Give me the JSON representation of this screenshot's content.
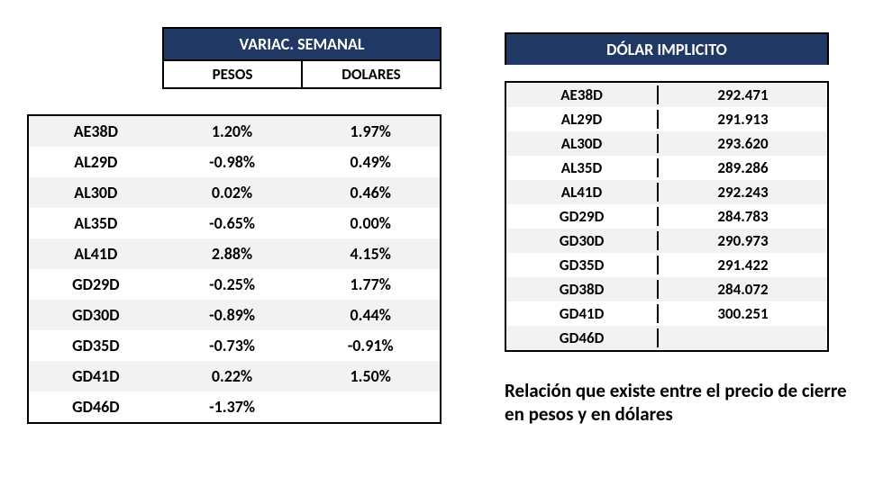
{
  "colors": {
    "header_bg": "#203864",
    "header_text": "#ffffff",
    "border": "#000000",
    "row_even": "#f2f2f2",
    "row_odd": "#ffffff",
    "text": "#000000",
    "page_bg": "#ffffff"
  },
  "typography": {
    "font_family": "Calibri, Arial, sans-serif",
    "title_fontsize_pt": 14,
    "cell_fontsize_pt": 13,
    "caption_fontsize_pt": 16,
    "weight": "bold"
  },
  "left": {
    "title": "VARIAC. SEMANAL",
    "subheaders": [
      "PESOS",
      "DOLARES"
    ],
    "columns": [
      "ticker",
      "pesos",
      "dolares"
    ],
    "rows": [
      {
        "ticker": "AE38D",
        "pesos": "1.20%",
        "dolares": "1.97%"
      },
      {
        "ticker": "AL29D",
        "pesos": "-0.98%",
        "dolares": "0.49%"
      },
      {
        "ticker": "AL30D",
        "pesos": "0.02%",
        "dolares": "0.46%"
      },
      {
        "ticker": "AL35D",
        "pesos": "-0.65%",
        "dolares": "0.00%"
      },
      {
        "ticker": "AL41D",
        "pesos": "2.88%",
        "dolares": "4.15%"
      },
      {
        "ticker": "GD29D",
        "pesos": "-0.25%",
        "dolares": "1.77%"
      },
      {
        "ticker": "GD30D",
        "pesos": "-0.89%",
        "dolares": "0.44%"
      },
      {
        "ticker": "GD35D",
        "pesos": "-0.73%",
        "dolares": "-0.91%"
      },
      {
        "ticker": "GD41D",
        "pesos": "0.22%",
        "dolares": "1.50%"
      },
      {
        "ticker": "GD46D",
        "pesos": "-1.37%",
        "dolares": ""
      }
    ]
  },
  "right": {
    "title": "DÓLAR IMPLICITO",
    "columns": [
      "ticker",
      "value"
    ],
    "rows": [
      {
        "ticker": "AE38D",
        "value": "292.471"
      },
      {
        "ticker": "AL29D",
        "value": "291.913"
      },
      {
        "ticker": "AL30D",
        "value": "293.620"
      },
      {
        "ticker": "AL35D",
        "value": "289.286"
      },
      {
        "ticker": "AL41D",
        "value": "292.243"
      },
      {
        "ticker": "GD29D",
        "value": "284.783"
      },
      {
        "ticker": "GD30D",
        "value": "290.973"
      },
      {
        "ticker": "GD35D",
        "value": "291.422"
      },
      {
        "ticker": "GD38D",
        "value": "284.072"
      },
      {
        "ticker": "GD41D",
        "value": "300.251"
      },
      {
        "ticker": "GD46D",
        "value": ""
      }
    ]
  },
  "caption": "Relación que existe entre el precio de cierre en pesos y en dólares"
}
